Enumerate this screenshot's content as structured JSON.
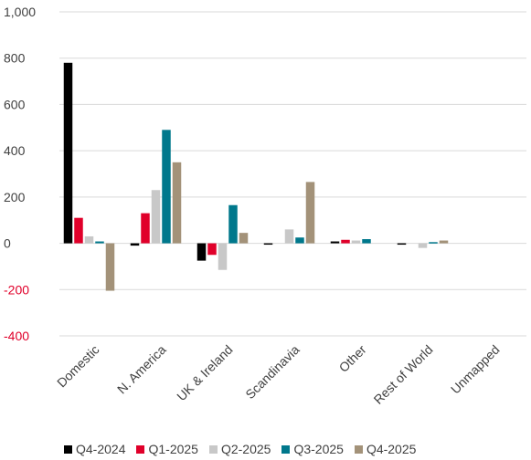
{
  "chart_data": {
    "type": "bar",
    "title": "",
    "xlabel": "",
    "ylabel": "",
    "ylim": [
      -400,
      1000
    ],
    "yticks": [
      -400,
      -200,
      0,
      200,
      400,
      600,
      800,
      1000
    ],
    "ytick_labels": [
      "-400",
      "-200",
      "0",
      "200",
      "400",
      "600",
      "800",
      "1,000"
    ],
    "grid": true,
    "legend_position": "bottom",
    "categories": [
      "Domestic",
      "N. America",
      "UK & Ireland",
      "Scandinavia",
      "Other",
      "Rest of World",
      "Unmapped"
    ],
    "series": [
      {
        "name": "Q4-2024",
        "color": "#000000",
        "values": [
          780,
          -10,
          -75,
          -3,
          8,
          -3,
          0
        ]
      },
      {
        "name": "Q1-2025",
        "color": "#e0002a",
        "values": [
          110,
          130,
          -50,
          0,
          15,
          0,
          0
        ]
      },
      {
        "name": "Q2-2025",
        "color": "#c8c8c8",
        "values": [
          30,
          230,
          -115,
          60,
          12,
          -20,
          0
        ]
      },
      {
        "name": "Q3-2025",
        "color": "#00788c",
        "values": [
          8,
          490,
          165,
          25,
          18,
          5,
          0
        ]
      },
      {
        "name": "Q4-2025",
        "color": "#a39279",
        "values": [
          -205,
          350,
          45,
          265,
          0,
          12,
          0
        ]
      }
    ]
  }
}
